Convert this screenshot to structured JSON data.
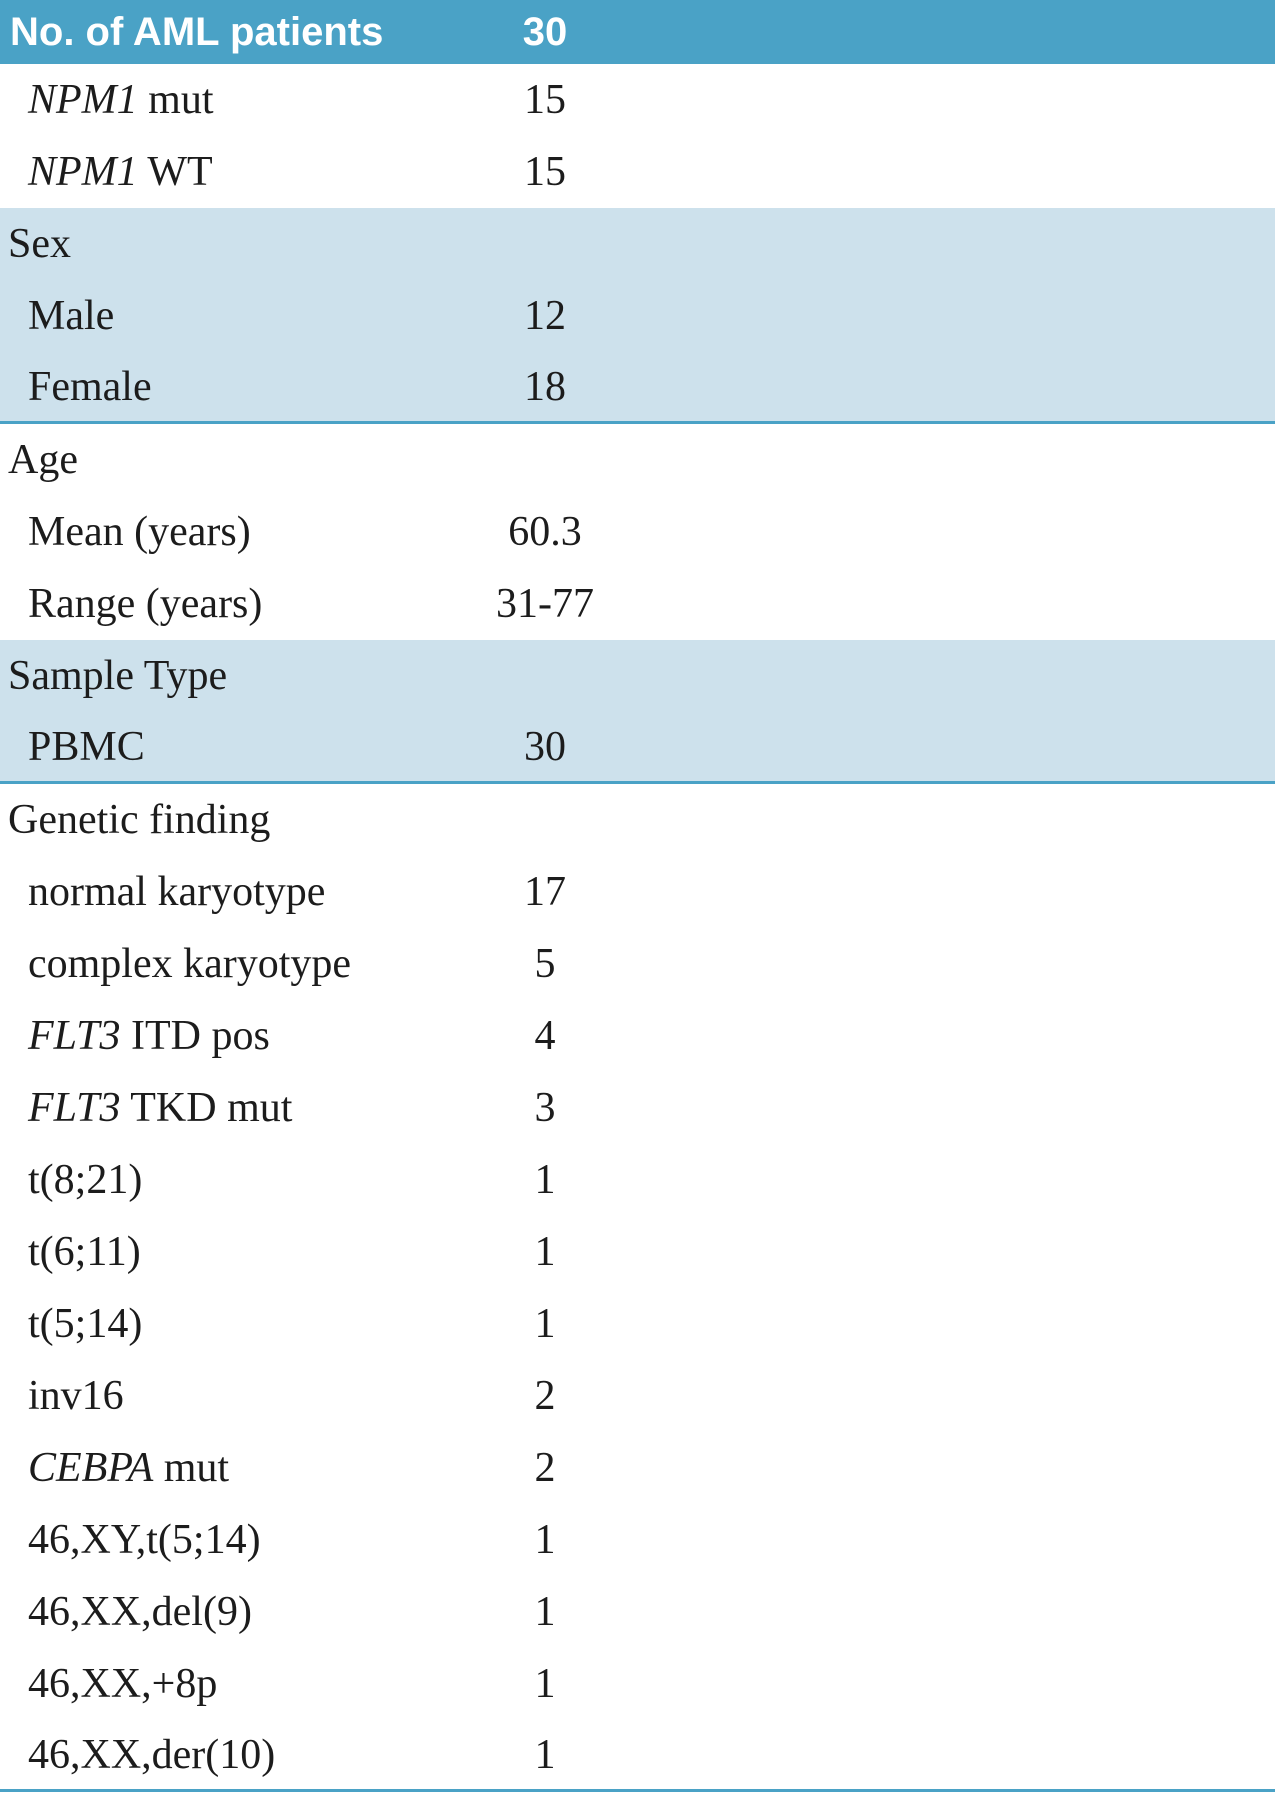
{
  "meta": {
    "colors": {
      "header_bg": "#4aa2c6",
      "header_text": "#ffffff",
      "section_bg": "#cde1ec",
      "rule": "#4aa2c6",
      "text": "#1c1c1c"
    }
  },
  "table": {
    "header": {
      "label": "No. of AML patients",
      "value": "30"
    },
    "rows": [
      {
        "kind": "item",
        "bg": "white",
        "segments": [
          {
            "text": "NPM1",
            "italic": true
          },
          {
            "text": " mut",
            "italic": false
          }
        ],
        "value": "15"
      },
      {
        "kind": "item",
        "bg": "white",
        "segments": [
          {
            "text": "NPM1",
            "italic": true
          },
          {
            "text": " WT",
            "italic": false
          }
        ],
        "value": "15"
      },
      {
        "kind": "section",
        "bg": "blue",
        "segments": [
          {
            "text": "Sex",
            "italic": false
          }
        ],
        "value": ""
      },
      {
        "kind": "item",
        "bg": "blue",
        "segments": [
          {
            "text": "Male",
            "italic": false
          }
        ],
        "value": "12"
      },
      {
        "kind": "item",
        "bg": "blue",
        "rule_below": true,
        "segments": [
          {
            "text": "Female",
            "italic": false
          }
        ],
        "value": "18"
      },
      {
        "kind": "section",
        "bg": "white",
        "segments": [
          {
            "text": "Age",
            "italic": false
          }
        ],
        "value": ""
      },
      {
        "kind": "item",
        "bg": "white",
        "segments": [
          {
            "text": "Mean (years)",
            "italic": false
          }
        ],
        "value": "60.3"
      },
      {
        "kind": "item",
        "bg": "white",
        "segments": [
          {
            "text": "Range (years)",
            "italic": false
          }
        ],
        "value": "31-77"
      },
      {
        "kind": "section",
        "bg": "blue",
        "segments": [
          {
            "text": "Sample Type",
            "italic": false
          }
        ],
        "value": ""
      },
      {
        "kind": "item",
        "bg": "blue",
        "rule_below": true,
        "segments": [
          {
            "text": "PBMC",
            "italic": false
          }
        ],
        "value": "30"
      },
      {
        "kind": "section",
        "bg": "white",
        "segments": [
          {
            "text": "Genetic finding",
            "italic": false
          }
        ],
        "value": ""
      },
      {
        "kind": "item",
        "bg": "white",
        "segments": [
          {
            "text": "normal karyotype",
            "italic": false
          }
        ],
        "value": "17"
      },
      {
        "kind": "item",
        "bg": "white",
        "segments": [
          {
            "text": "complex karyotype",
            "italic": false
          }
        ],
        "value": "5"
      },
      {
        "kind": "item",
        "bg": "white",
        "segments": [
          {
            "text": "FLT3",
            "italic": true
          },
          {
            "text": " ITD pos",
            "italic": false
          }
        ],
        "value": "4"
      },
      {
        "kind": "item",
        "bg": "white",
        "segments": [
          {
            "text": "FLT3",
            "italic": true
          },
          {
            "text": " TKD mut",
            "italic": false
          }
        ],
        "value": "3"
      },
      {
        "kind": "item",
        "bg": "white",
        "segments": [
          {
            "text": "t(8;21)",
            "italic": false
          }
        ],
        "value": "1"
      },
      {
        "kind": "item",
        "bg": "white",
        "segments": [
          {
            "text": "t(6;11)",
            "italic": false
          }
        ],
        "value": "1"
      },
      {
        "kind": "item",
        "bg": "white",
        "segments": [
          {
            "text": "t(5;14)",
            "italic": false
          }
        ],
        "value": "1"
      },
      {
        "kind": "item",
        "bg": "white",
        "segments": [
          {
            "text": "inv16",
            "italic": false
          }
        ],
        "value": "2"
      },
      {
        "kind": "item",
        "bg": "white",
        "segments": [
          {
            "text": "CEBPA",
            "italic": true
          },
          {
            "text": " mut",
            "italic": false
          }
        ],
        "value": "2"
      },
      {
        "kind": "item",
        "bg": "white",
        "segments": [
          {
            "text": "46,XY,t(5;14)",
            "italic": false
          }
        ],
        "value": "1"
      },
      {
        "kind": "item",
        "bg": "white",
        "segments": [
          {
            "text": "46,XX,del(9)",
            "italic": false
          }
        ],
        "value": "1"
      },
      {
        "kind": "item",
        "bg": "white",
        "segments": [
          {
            "text": "46,XX,+8p",
            "italic": false
          }
        ],
        "value": "1"
      },
      {
        "kind": "item",
        "bg": "white",
        "rule_below": true,
        "segments": [
          {
            "text": "46,XX,der(10)",
            "italic": false
          }
        ],
        "value": "1"
      }
    ]
  }
}
